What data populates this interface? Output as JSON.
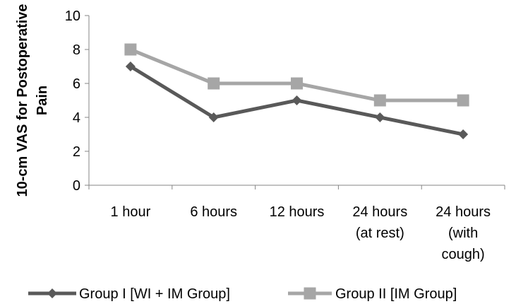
{
  "chart_data": {
    "type": "line",
    "categories": [
      [
        "1 hour"
      ],
      [
        "6 hours"
      ],
      [
        "12 hours"
      ],
      [
        "24 hours",
        "(at rest)"
      ],
      [
        "24 hours",
        "(with",
        "cough)"
      ]
    ],
    "series": [
      {
        "name": "Group I [WI + IM Group]",
        "values": [
          7,
          4,
          5,
          4,
          3
        ],
        "color": "#595959",
        "marker": "diamond"
      },
      {
        "name": "Group II [IM Group]",
        "values": [
          8,
          6,
          6,
          5,
          5
        ],
        "color": "#a6a6a6",
        "marker": "square"
      }
    ],
    "title": "",
    "xlabel": "",
    "ylabel": [
      "10-cm VAS for Postoperative",
      "Pain"
    ],
    "ylim": [
      0,
      10
    ],
    "yticks": [
      0,
      2,
      4,
      6,
      8,
      10
    ],
    "grid": false,
    "legend": "bottom"
  }
}
